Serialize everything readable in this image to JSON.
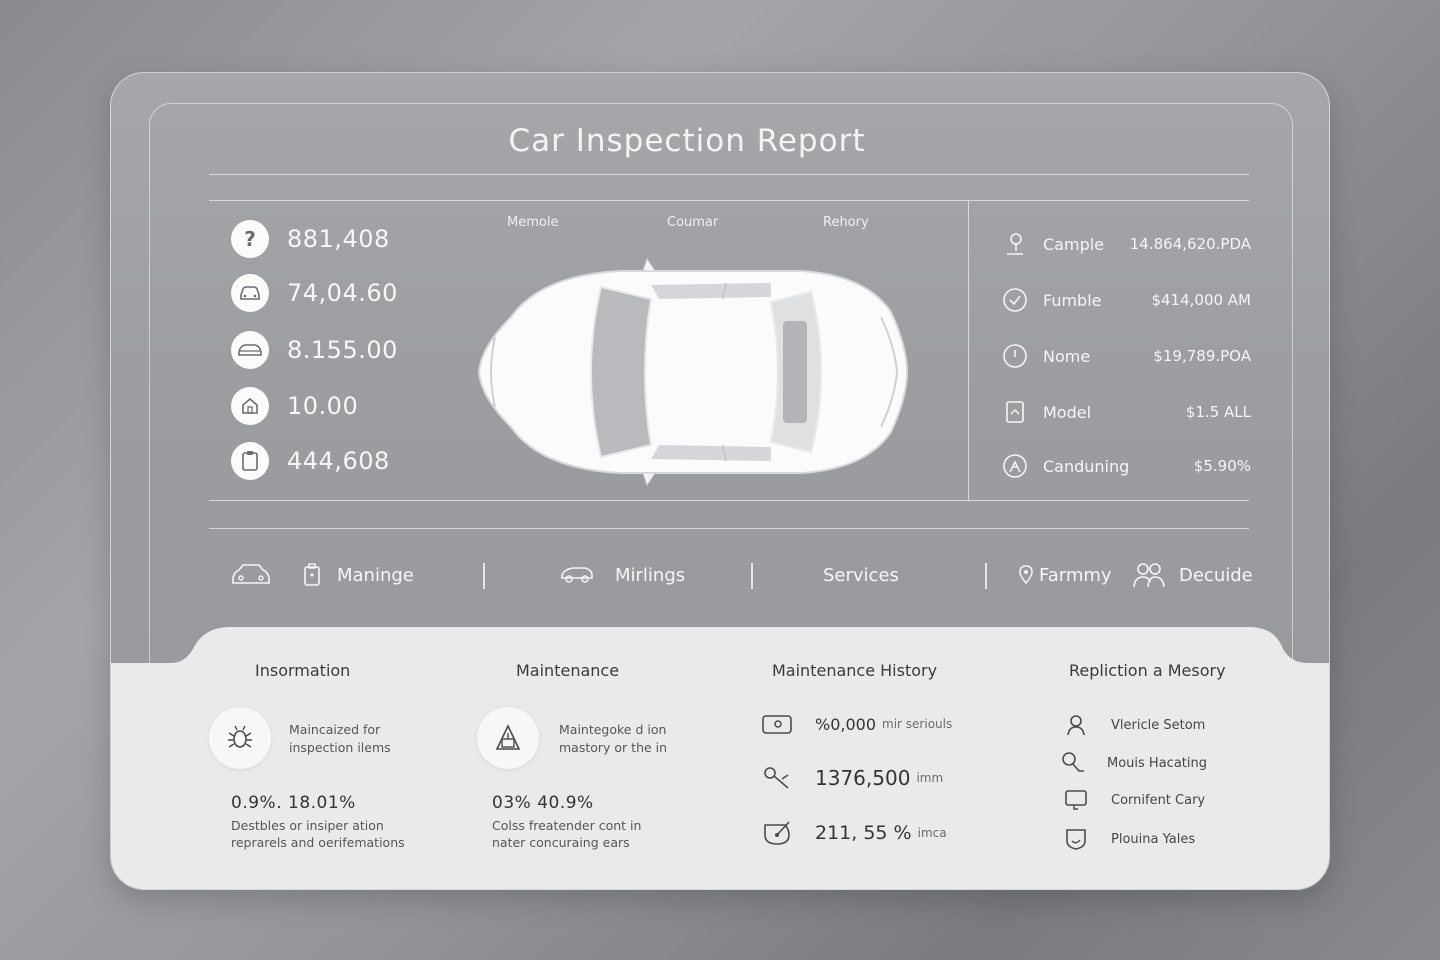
{
  "header": {
    "title": "Car Inspection Report"
  },
  "metrics": [
    {
      "icon": "question-icon",
      "value": "881,408"
    },
    {
      "icon": "car-icon",
      "value": "74,04.60"
    },
    {
      "icon": "car-front-icon",
      "value": "8.155.00"
    },
    {
      "icon": "home-icon",
      "value": "10.00"
    },
    {
      "icon": "clipboard-icon",
      "value": "444,608"
    }
  ],
  "car_view": {
    "labels": [
      "Memole",
      "Coumar",
      "Rehory"
    ]
  },
  "specs": [
    {
      "icon": "person-pin-icon",
      "label": "Cample",
      "value": "14.864,620.PDA"
    },
    {
      "icon": "check-circle-icon",
      "label": "Fumble",
      "value": "$414,000 AM"
    },
    {
      "icon": "clock-icon",
      "label": "Nome",
      "value": "$19,789.POA"
    },
    {
      "icon": "tablet-icon",
      "label": "Model",
      "value": "$1.5 ALL"
    },
    {
      "icon": "steering-icon",
      "label": "Canduning",
      "value": "$5.90%"
    }
  ],
  "nav": {
    "items": [
      {
        "icon": "car-icon",
        "label": ""
      },
      {
        "icon": "fuel-icon",
        "label": "Maninge"
      },
      {
        "icon": "car-side-icon",
        "label": "Mirlings"
      },
      {
        "icon": "",
        "label": "Services"
      },
      {
        "icon": "pin-icon",
        "label": "Farmmy"
      },
      {
        "icon": "people-icon",
        "label": "Decuide"
      }
    ]
  },
  "panels": {
    "information": {
      "title": "Insormation",
      "bubble_text": [
        "Maincaized for",
        "inspection ilems"
      ],
      "stat": "0.9%.  18.01%",
      "desc": [
        "Destbles or insiper ation",
        "reprarels and oerifemations"
      ]
    },
    "maintenance": {
      "title": "Maintenance",
      "bubble_text": [
        "Maintegoke d ion",
        "mastory or the in"
      ],
      "stat": "03%  40.9%",
      "desc": [
        "Colss freatender cont in",
        "nater concuraing ears"
      ]
    },
    "history": {
      "title": "Maintenance History",
      "rows": [
        {
          "icon": "camera-icon",
          "value": "%0,000",
          "unit": "mir seriouls"
        },
        {
          "icon": "wrench-icon",
          "value": "1376,500",
          "unit": "imm"
        },
        {
          "icon": "gauge-icon",
          "value": "211, 55 %",
          "unit": "imca"
        }
      ]
    },
    "replication": {
      "title": "Repliction a Mesory",
      "rows": [
        {
          "icon": "person-icon",
          "label": "Vlericle Setom"
        },
        {
          "icon": "search-person-icon",
          "label": "Mouis Hacating"
        },
        {
          "icon": "monitor-icon",
          "label": "Cornifent Cary"
        },
        {
          "icon": "shield-icon",
          "label": "Plouina Yales"
        }
      ]
    }
  }
}
